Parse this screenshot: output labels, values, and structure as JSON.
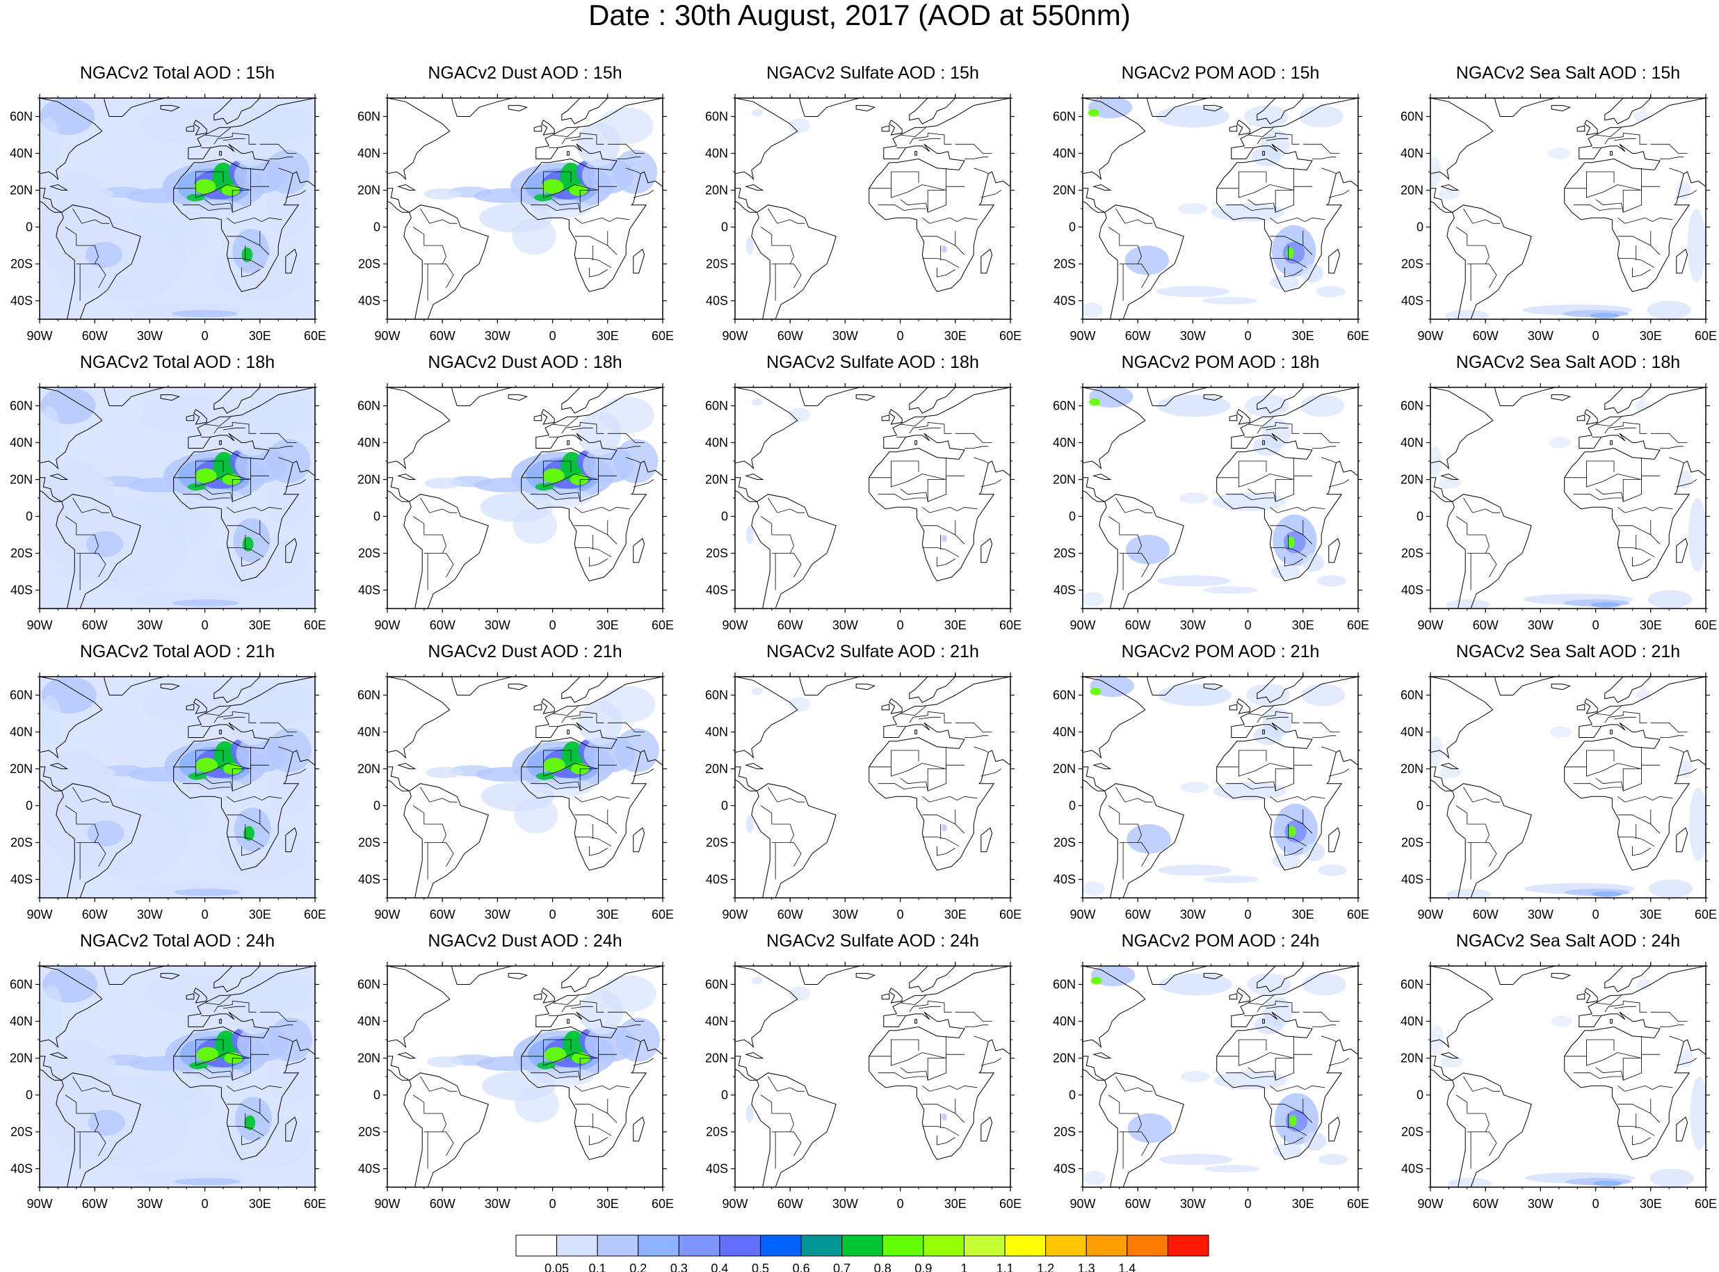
{
  "title": "Date : 30th August, 2017 (AOD at 550nm)",
  "lat_labels": [
    "60N",
    "40N",
    "20N",
    "0",
    "20S",
    "40S"
  ],
  "lat_values": [
    60,
    40,
    20,
    0,
    -20,
    -40
  ],
  "lon_labels": [
    "90W",
    "60W",
    "30W",
    "0",
    "30E",
    "60E"
  ],
  "lon_values": [
    -90,
    -60,
    -30,
    0,
    30,
    60
  ],
  "map_extent": {
    "lon_min": -90,
    "lon_max": 60,
    "lat_min": -50,
    "lat_max": 70
  },
  "panels": [
    {
      "title": "NGACv2 Total AOD : 15h",
      "species": "total",
      "hour": "15h"
    },
    {
      "title": "NGACv2 Dust AOD : 15h",
      "species": "dust",
      "hour": "15h"
    },
    {
      "title": "NGACv2 Sulfate AOD : 15h",
      "species": "sulfate",
      "hour": "15h"
    },
    {
      "title": "NGACv2 POM AOD : 15h",
      "species": "pom",
      "hour": "15h"
    },
    {
      "title": "NGACv2 Sea Salt AOD : 15h",
      "species": "seasalt",
      "hour": "15h"
    },
    {
      "title": "NGACv2 Total AOD : 18h",
      "species": "total",
      "hour": "18h"
    },
    {
      "title": "NGACv2 Dust AOD : 18h",
      "species": "dust",
      "hour": "18h"
    },
    {
      "title": "NGACv2 Sulfate AOD : 18h",
      "species": "sulfate",
      "hour": "18h"
    },
    {
      "title": "NGACv2 POM AOD : 18h",
      "species": "pom",
      "hour": "18h"
    },
    {
      "title": "NGACv2 Sea Salt AOD : 18h",
      "species": "seasalt",
      "hour": "18h"
    },
    {
      "title": "NGACv2 Total AOD : 21h",
      "species": "total",
      "hour": "21h"
    },
    {
      "title": "NGACv2 Dust AOD : 21h",
      "species": "dust",
      "hour": "21h"
    },
    {
      "title": "NGACv2 Sulfate AOD : 21h",
      "species": "sulfate",
      "hour": "21h"
    },
    {
      "title": "NGACv2 POM AOD : 21h",
      "species": "pom",
      "hour": "21h"
    },
    {
      "title": "NGACv2 Sea Salt AOD : 21h",
      "species": "seasalt",
      "hour": "21h"
    },
    {
      "title": "NGACv2 Total AOD : 24h",
      "species": "total",
      "hour": "24h"
    },
    {
      "title": "NGACv2 Dust AOD : 24h",
      "species": "dust",
      "hour": "24h"
    },
    {
      "title": "NGACv2 Sulfate AOD : 24h",
      "species": "sulfate",
      "hour": "24h"
    },
    {
      "title": "NGACv2 POM AOD : 24h",
      "species": "pom",
      "hour": "24h"
    },
    {
      "title": "NGACv2 Sea Salt  AOD : 24h",
      "species": "seasalt",
      "hour": "24h"
    }
  ],
  "colorbar": {
    "labels": [
      "0.05",
      "0.1",
      "0.2",
      "0.3",
      "0.4",
      "0.5",
      "0.6",
      "0.7",
      "0.8",
      "0.9",
      "1",
      "1.1",
      "1.2",
      "1.3",
      "1.4"
    ],
    "colors": [
      "#ffffff",
      "#d6e2ff",
      "#b5c9ff",
      "#8eb2ff",
      "#7f96ff",
      "#6370ff",
      "#0063ff",
      "#009696",
      "#00c633",
      "#63ff00",
      "#96ff00",
      "#c6ff33",
      "#ffff00",
      "#ffc600",
      "#ffa000",
      "#ff7c00",
      "#ff1900"
    ]
  }
}
